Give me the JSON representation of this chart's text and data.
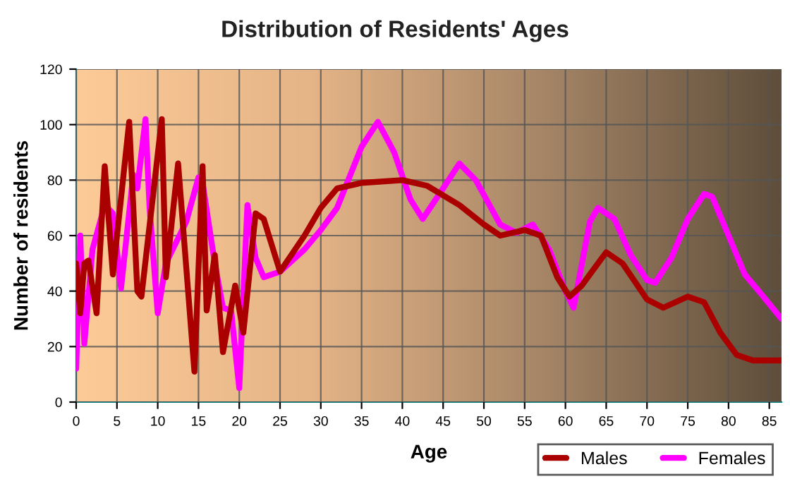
{
  "chart_data": {
    "type": "line",
    "title": "Distribution of Residents' Ages",
    "xlabel": "Age",
    "ylabel": "Number of residents",
    "xlim": [
      0,
      86.5
    ],
    "xticks": [
      0,
      5,
      10,
      15,
      20,
      25,
      30,
      35,
      40,
      45,
      50,
      55,
      60,
      65,
      70,
      75,
      80,
      85
    ],
    "ylim": [
      0,
      120
    ],
    "yticks": [
      0,
      20,
      40,
      60,
      80,
      100,
      120
    ],
    "grid": true,
    "legend": "bottom right",
    "series": [
      {
        "name": "Males",
        "color": "#aa0000",
        "x": [
          0,
          0.5,
          1,
          1.5,
          2.5,
          3.5,
          4.5,
          6.5,
          7.5,
          8,
          10.5,
          11,
          12.5,
          14.5,
          15.5,
          16,
          17,
          18,
          19.5,
          20.5,
          22,
          23,
          25,
          28,
          30,
          32,
          35,
          40,
          43,
          47,
          50,
          52,
          55,
          57,
          59,
          60.5,
          62,
          64,
          65,
          67,
          70,
          72,
          75,
          77,
          79,
          81,
          83,
          86.5
        ],
        "values": [
          50,
          32,
          50,
          51,
          32,
          85,
          46,
          101,
          40,
          38,
          102,
          45,
          86,
          11,
          85,
          33,
          53,
          18,
          42,
          25,
          68,
          66,
          47,
          60,
          70,
          77,
          79,
          80,
          78,
          71,
          64,
          60,
          62,
          60,
          45,
          38,
          42,
          50,
          54,
          50,
          37,
          34,
          38,
          36,
          25,
          17,
          15,
          15
        ]
      },
      {
        "name": "Females",
        "color": "#ff00ff",
        "x": [
          0,
          0.5,
          1,
          2,
          3.5,
          4.5,
          5.5,
          7,
          7.5,
          8.5,
          9,
          10,
          11,
          12,
          13.5,
          15,
          15.5,
          17,
          18,
          19,
          20,
          21,
          22,
          23,
          25,
          28,
          30,
          32,
          35,
          37,
          39,
          41,
          42.5,
          45,
          47,
          49,
          52,
          54,
          56,
          58,
          60,
          61,
          63,
          64,
          66,
          68,
          70,
          71,
          73,
          75,
          77,
          78,
          80,
          82,
          84,
          86.5
        ],
        "values": [
          12,
          60,
          21,
          55,
          71,
          68,
          41,
          82,
          77,
          102,
          70,
          32,
          50,
          56,
          65,
          81,
          79,
          50,
          34,
          33,
          5,
          71,
          52,
          45,
          47,
          55,
          62,
          70,
          92,
          101,
          90,
          73,
          66,
          77,
          86,
          80,
          64,
          61,
          64,
          55,
          40,
          34,
          65,
          70,
          66,
          53,
          44,
          43,
          52,
          66,
          75,
          74,
          60,
          46,
          39,
          30
        ]
      }
    ]
  }
}
